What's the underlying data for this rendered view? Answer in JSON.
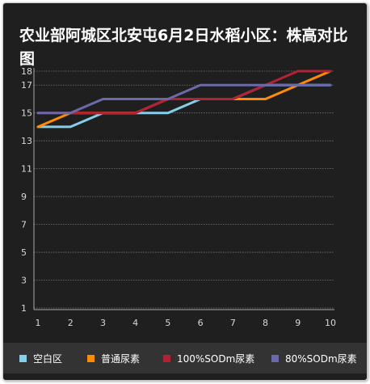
{
  "chart_data": {
    "type": "line",
    "title": "农业部阿城区北安屯6月2日水稻小区：株高对比图",
    "xlabel": "",
    "ylabel": "",
    "categories": [
      "1",
      "2",
      "3",
      "4",
      "5",
      "6",
      "7",
      "8",
      "9",
      "10"
    ],
    "y_ticks": [
      "1",
      "3",
      "5",
      "7",
      "9",
      "11",
      "13",
      "15",
      "17",
      "18"
    ],
    "ylim": [
      1,
      18
    ],
    "grid": true,
    "legend_position": "bottom",
    "series": [
      {
        "name": "空白区",
        "color": "#87ceeb",
        "values": [
          14,
          14,
          15,
          15,
          15,
          16,
          16,
          17,
          17,
          17
        ]
      },
      {
        "name": "普通尿素",
        "color": "#ff8c00",
        "values": [
          14,
          15,
          15,
          15,
          16,
          16,
          16,
          16,
          17,
          18
        ]
      },
      {
        "name": "100%SODm尿素",
        "color": "#b22234",
        "values": [
          15,
          15,
          15,
          15,
          16,
          16,
          16,
          17,
          18,
          18
        ]
      },
      {
        "name": "80%SODm尿素",
        "color": "#6a6aa8",
        "values": [
          15,
          15,
          16,
          16,
          16,
          17,
          17,
          17,
          17,
          17
        ]
      }
    ]
  }
}
